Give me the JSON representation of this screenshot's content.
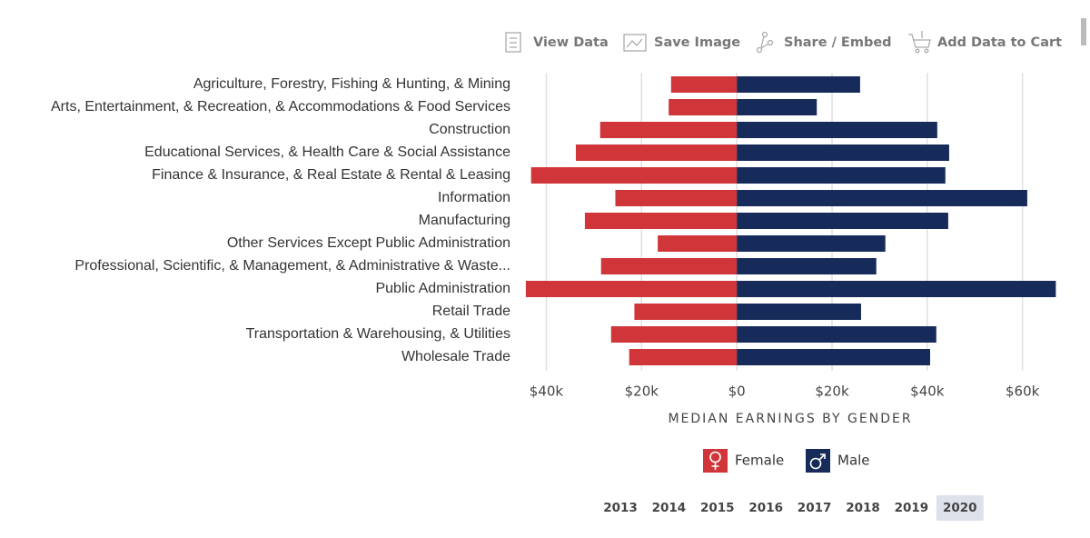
{
  "toolbar": [
    "View Data",
    "Save Image",
    "Share / Embed",
    "Add Data to Cart"
  ],
  "chart_data": {
    "type": "bar",
    "orientation": "horizontal",
    "categories": [
      "Agriculture, Forestry, Fishing & Hunting, & Mining",
      "Arts, Entertainment, & Recreation, & Accommodations & Food Services",
      "Construction",
      "Educational Services, & Health Care & Social Assistance",
      "Finance & Insurance, & Real Estate & Rental & Leasing",
      "Information",
      "Manufacturing",
      "Other Services Except Public Administration",
      "Professional, Scientific, & Management, & Administrative & Waste...",
      "Public Administration",
      "Retail Trade",
      "Transportation & Warehousing, & Utilities",
      "Wholesale Trade"
    ],
    "series": [
      {
        "name": "Female",
        "color": "#d03539",
        "values": [
          -13800,
          -14300,
          -28700,
          -33800,
          -43200,
          -25500,
          -31900,
          -16600,
          -28500,
          -44300,
          -21500,
          -26400,
          -22600
        ]
      },
      {
        "name": "Male",
        "color": "#172b5a",
        "values": [
          25900,
          16800,
          42100,
          44600,
          43800,
          61000,
          44400,
          31200,
          29300,
          67000,
          26100,
          41900,
          40600
        ]
      }
    ],
    "xlabel": "MEDIAN EARNINGS BY GENDER",
    "xlim": [
      -46000,
      67500
    ],
    "xticks": [
      {
        "value": -40000,
        "label": "$40k"
      },
      {
        "value": -20000,
        "label": "$20k"
      },
      {
        "value": 0,
        "label": "$0"
      },
      {
        "value": 20000,
        "label": "$20k"
      },
      {
        "value": 40000,
        "label": "$40k"
      },
      {
        "value": 60000,
        "label": "$60k"
      }
    ],
    "grid": true
  },
  "years": {
    "options": [
      "2013",
      "2014",
      "2015",
      "2016",
      "2017",
      "2018",
      "2019",
      "2020"
    ],
    "selected": "2020"
  }
}
